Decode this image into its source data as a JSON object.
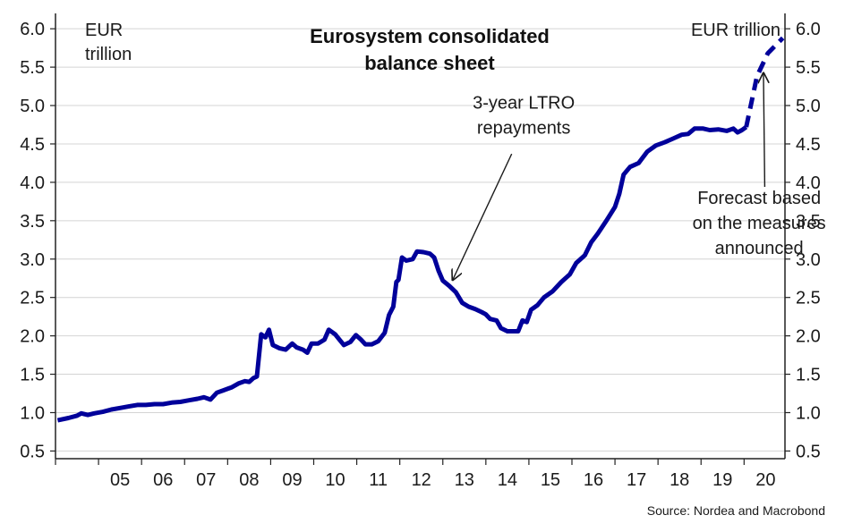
{
  "chart_data": {
    "type": "line",
    "title_lines": [
      "Eurosystem consolidated",
      "balance sheet"
    ],
    "unit_left_lines": [
      "EUR",
      "trillion"
    ],
    "unit_right": "EUR trillion",
    "ylim": [
      0.4,
      6.2
    ],
    "yticks": [
      "0.5",
      "1.0",
      "1.5",
      "2.0",
      "2.5",
      "3.0",
      "3.5",
      "4.0",
      "4.5",
      "5.0",
      "5.5",
      "6.0"
    ],
    "xlim": [
      2004.0,
      2020.95
    ],
    "x_year_boundaries": [
      2004,
      2005,
      2006,
      2007,
      2008,
      2009,
      2010,
      2011,
      2012,
      2013,
      2014,
      2015,
      2016,
      2017,
      2018,
      2019,
      2020
    ],
    "xticks": [
      {
        "label": "05",
        "x": 2005.0
      },
      {
        "label": "06",
        "x": 2006.0
      },
      {
        "label": "07",
        "x": 2007.0
      },
      {
        "label": "08",
        "x": 2008.0
      },
      {
        "label": "09",
        "x": 2009.0
      },
      {
        "label": "10",
        "x": 2010.0
      },
      {
        "label": "11",
        "x": 2011.0
      },
      {
        "label": "12",
        "x": 2012.0
      },
      {
        "label": "13",
        "x": 2013.0
      },
      {
        "label": "14",
        "x": 2014.0
      },
      {
        "label": "15",
        "x": 2015.0
      },
      {
        "label": "16",
        "x": 2016.0
      },
      {
        "label": "17",
        "x": 2017.0
      },
      {
        "label": "18",
        "x": 2018.0
      },
      {
        "label": "19",
        "x": 2019.0
      },
      {
        "label": "20",
        "x": 2020.0
      }
    ],
    "series": [
      {
        "style": "solid",
        "color": "#00009a",
        "points": [
          [
            2004.05,
            0.9
          ],
          [
            2004.3,
            0.93
          ],
          [
            2004.5,
            0.96
          ],
          [
            2004.6,
            0.99
          ],
          [
            2004.75,
            0.97
          ],
          [
            2004.9,
            0.99
          ],
          [
            2005.1,
            1.01
          ],
          [
            2005.3,
            1.04
          ],
          [
            2005.5,
            1.06
          ],
          [
            2005.7,
            1.08
          ],
          [
            2005.9,
            1.1
          ],
          [
            2006.1,
            1.1
          ],
          [
            2006.3,
            1.11
          ],
          [
            2006.5,
            1.11
          ],
          [
            2006.7,
            1.13
          ],
          [
            2006.9,
            1.14
          ],
          [
            2007.1,
            1.16
          ],
          [
            2007.3,
            1.18
          ],
          [
            2007.45,
            1.2
          ],
          [
            2007.6,
            1.17
          ],
          [
            2007.75,
            1.26
          ],
          [
            2007.9,
            1.29
          ],
          [
            2008.1,
            1.33
          ],
          [
            2008.25,
            1.38
          ],
          [
            2008.4,
            1.41
          ],
          [
            2008.5,
            1.4
          ],
          [
            2008.6,
            1.45
          ],
          [
            2008.68,
            1.47
          ],
          [
            2008.78,
            2.02
          ],
          [
            2008.88,
            1.98
          ],
          [
            2008.96,
            2.08
          ],
          [
            2009.05,
            1.88
          ],
          [
            2009.2,
            1.84
          ],
          [
            2009.35,
            1.82
          ],
          [
            2009.5,
            1.9
          ],
          [
            2009.6,
            1.85
          ],
          [
            2009.75,
            1.82
          ],
          [
            2009.85,
            1.78
          ],
          [
            2009.95,
            1.9
          ],
          [
            2010.1,
            1.9
          ],
          [
            2010.25,
            1.95
          ],
          [
            2010.35,
            2.08
          ],
          [
            2010.5,
            2.02
          ],
          [
            2010.6,
            1.95
          ],
          [
            2010.7,
            1.88
          ],
          [
            2010.85,
            1.92
          ],
          [
            2010.98,
            2.01
          ],
          [
            2011.1,
            1.95
          ],
          [
            2011.2,
            1.89
          ],
          [
            2011.35,
            1.89
          ],
          [
            2011.5,
            1.93
          ],
          [
            2011.65,
            2.04
          ],
          [
            2011.75,
            2.27
          ],
          [
            2011.85,
            2.38
          ],
          [
            2011.92,
            2.7
          ],
          [
            2011.97,
            2.73
          ],
          [
            2012.05,
            3.02
          ],
          [
            2012.15,
            2.98
          ],
          [
            2012.3,
            3.0
          ],
          [
            2012.4,
            3.1
          ],
          [
            2012.55,
            3.09
          ],
          [
            2012.7,
            3.07
          ],
          [
            2012.8,
            3.02
          ],
          [
            2012.9,
            2.85
          ],
          [
            2013.0,
            2.72
          ],
          [
            2013.15,
            2.65
          ],
          [
            2013.3,
            2.57
          ],
          [
            2013.45,
            2.43
          ],
          [
            2013.6,
            2.38
          ],
          [
            2013.75,
            2.35
          ],
          [
            2013.9,
            2.31
          ],
          [
            2014.0,
            2.28
          ],
          [
            2014.1,
            2.22
          ],
          [
            2014.25,
            2.2
          ],
          [
            2014.35,
            2.1
          ],
          [
            2014.5,
            2.06
          ],
          [
            2014.6,
            2.06
          ],
          [
            2014.75,
            2.06
          ],
          [
            2014.85,
            2.2
          ],
          [
            2014.95,
            2.18
          ],
          [
            2015.05,
            2.34
          ],
          [
            2015.2,
            2.4
          ],
          [
            2015.35,
            2.5
          ],
          [
            2015.55,
            2.58
          ],
          [
            2015.75,
            2.7
          ],
          [
            2015.95,
            2.8
          ],
          [
            2016.1,
            2.95
          ],
          [
            2016.3,
            3.05
          ],
          [
            2016.45,
            3.22
          ],
          [
            2016.6,
            3.33
          ],
          [
            2016.8,
            3.5
          ],
          [
            2017.0,
            3.68
          ],
          [
            2017.1,
            3.85
          ],
          [
            2017.2,
            4.1
          ],
          [
            2017.35,
            4.2
          ],
          [
            2017.55,
            4.25
          ],
          [
            2017.75,
            4.4
          ],
          [
            2017.95,
            4.48
          ],
          [
            2018.15,
            4.52
          ],
          [
            2018.35,
            4.57
          ],
          [
            2018.55,
            4.62
          ],
          [
            2018.7,
            4.63
          ],
          [
            2018.85,
            4.7
          ],
          [
            2019.05,
            4.7
          ],
          [
            2019.2,
            4.68
          ],
          [
            2019.4,
            4.69
          ],
          [
            2019.6,
            4.67
          ],
          [
            2019.75,
            4.7
          ],
          [
            2019.85,
            4.65
          ],
          [
            2019.95,
            4.68
          ],
          [
            2020.05,
            4.72
          ]
        ]
      },
      {
        "style": "dashed",
        "color": "#00009a",
        "points": [
          [
            2020.05,
            4.72
          ],
          [
            2020.3,
            5.38
          ],
          [
            2020.55,
            5.68
          ],
          [
            2020.9,
            5.88
          ]
        ]
      }
    ],
    "annotations": [
      {
        "lines": [
          "3-year LTRO",
          "repayments"
        ],
        "text_at": [
          2014.88,
          4.96
        ],
        "arrow_from": [
          2014.6,
          4.37
        ],
        "arrow_to": [
          2013.23,
          2.73
        ]
      },
      {
        "lines": [
          "Forecast based",
          "on the measures",
          "announced"
        ],
        "text_at": [
          2020.35,
          3.72
        ],
        "arrow_from": [
          2020.48,
          3.94
        ],
        "arrow_to": [
          2020.45,
          5.42
        ]
      }
    ],
    "source": "Source: Nordea and Macrobond"
  }
}
